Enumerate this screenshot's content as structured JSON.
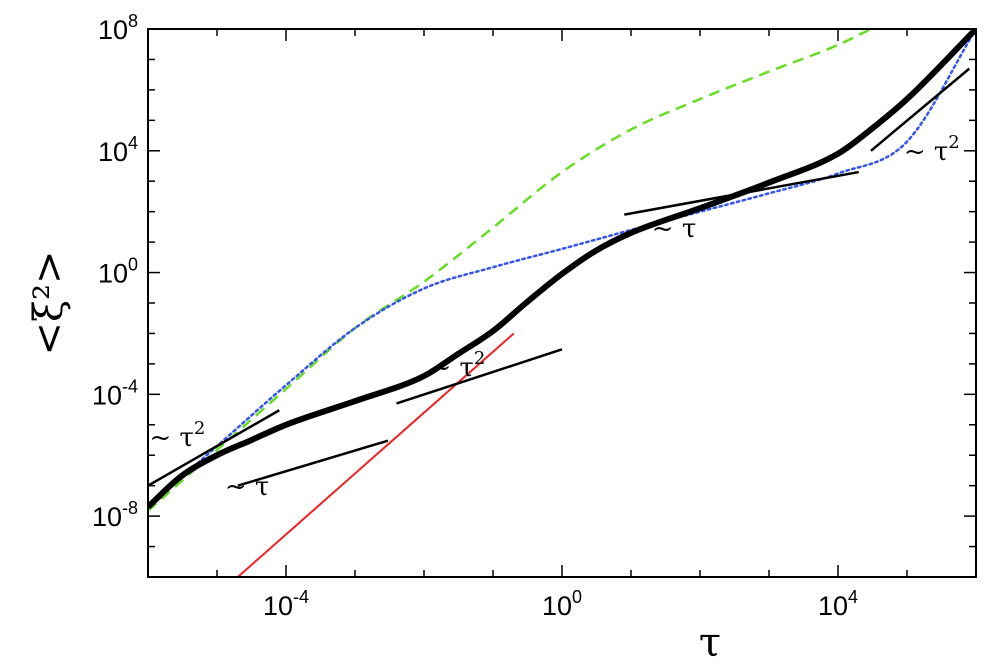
{
  "chart_data": {
    "type": "line",
    "scale": "log-log",
    "xlabel": "τ",
    "ylabel": "<ξ²>",
    "xlim": [
      1e-06,
      1000000.0
    ],
    "ylim": [
      1e-10,
      100000000.0
    ],
    "x_ticks": [
      {
        "value": 0.0001,
        "base": "10",
        "exp": "-4"
      },
      {
        "value": 1,
        "base": "10",
        "exp": "0"
      },
      {
        "value": 10000,
        "base": "10",
        "exp": "4"
      }
    ],
    "y_ticks": [
      {
        "value": 1e-08,
        "base": "10",
        "exp": "-8"
      },
      {
        "value": 0.0001,
        "base": "10",
        "exp": "-4"
      },
      {
        "value": 1,
        "base": "10",
        "exp": "0"
      },
      {
        "value": 10000,
        "base": "10",
        "exp": "4"
      },
      {
        "value": 100000000.0,
        "base": "10",
        "exp": "8"
      }
    ],
    "grid": false,
    "series": [
      {
        "style": "solid-thick",
        "color": "#000000",
        "points": [
          [
            1e-06,
            2e-08
          ],
          [
            3e-06,
            2e-07
          ],
          [
            1e-05,
            1e-06
          ],
          [
            3e-05,
            3e-06
          ],
          [
            0.0001,
            1e-05
          ],
          [
            0.001,
            6e-05
          ],
          [
            0.01,
            0.0004
          ],
          [
            0.03,
            0.002
          ],
          [
            0.1,
            0.012
          ],
          [
            0.3,
            0.1
          ],
          [
            1,
            0.9
          ],
          [
            3,
            5
          ],
          [
            10,
            20
          ],
          [
            100,
            130
          ],
          [
            1000,
            900
          ],
          [
            10000,
            8000
          ],
          [
            30000,
            50000.0
          ],
          [
            100000.0,
            500000.0
          ],
          [
            1000000.0,
            100000000.0
          ]
        ]
      },
      {
        "style": "dotted",
        "color": "#3355ee",
        "points": [
          [
            1e-06,
            2e-08
          ],
          [
            1e-05,
            2e-06
          ],
          [
            0.0001,
            0.0002
          ],
          [
            0.001,
            0.015
          ],
          [
            0.01,
            0.3
          ],
          [
            0.1,
            1.5
          ],
          [
            1,
            6
          ],
          [
            10,
            25
          ],
          [
            100,
            100
          ],
          [
            1000,
            400
          ],
          [
            10000,
            1800
          ],
          [
            100000.0,
            20000.0
          ],
          [
            1000000.0,
            100000000.0
          ]
        ]
      },
      {
        "style": "dashed",
        "color": "#66dd22",
        "points": [
          [
            1e-06,
            1.5e-08
          ],
          [
            1e-05,
            1.5e-06
          ],
          [
            0.0001,
            0.00015
          ],
          [
            0.001,
            0.015
          ],
          [
            0.01,
            0.5
          ],
          [
            0.1,
            30
          ],
          [
            1,
            2000
          ],
          [
            10,
            50000.0
          ],
          [
            100,
            500000.0
          ],
          [
            1000,
            4000000.0
          ],
          [
            10000,
            30000000.0
          ],
          [
            30000,
            100000000.0
          ]
        ]
      },
      {
        "style": "solid-thin",
        "color": "#ee2222",
        "points": [
          [
            2e-05,
            1e-10
          ],
          [
            0.2,
            0.01
          ]
        ]
      }
    ],
    "reference_lines": [
      {
        "x": [
          1e-06,
          8e-05
        ],
        "y": [
          1e-07,
          3e-05
        ]
      },
      {
        "x": [
          2e-05,
          0.003
        ],
        "y": [
          1e-07,
          3e-06
        ]
      },
      {
        "x": [
          0.004,
          1
        ],
        "y": [
          5e-05,
          0.003
        ]
      },
      {
        "x": [
          8,
          20000
        ],
        "y": [
          80,
          2000
        ]
      },
      {
        "x": [
          30000,
          800000
        ],
        "y": [
          10000,
          5000000.0
        ]
      }
    ],
    "annotations": [
      {
        "text": "~ τ",
        "sup": "2",
        "x": 1.05e-06,
        "y": 2e-06
      },
      {
        "text": "~ τ",
        "sup": "",
        "x": 1.3e-05,
        "y": 5e-08
      },
      {
        "text": "~ τ",
        "sup": "2",
        "x": 0.012,
        "y": 0.0004
      },
      {
        "text": "~ τ",
        "sup": "",
        "x": 20,
        "y": 15
      },
      {
        "text": "~ τ",
        "sup": "2",
        "x": 90000,
        "y": 5000
      }
    ]
  }
}
